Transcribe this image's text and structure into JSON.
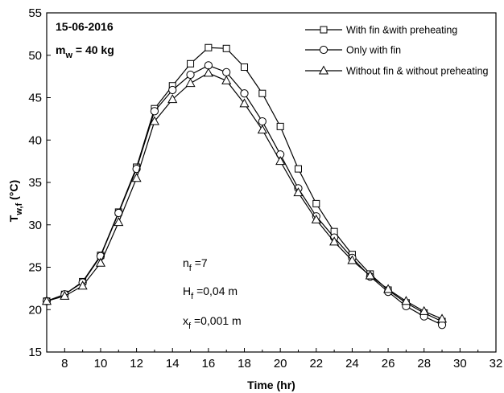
{
  "chart_data": {
    "type": "line",
    "title": "",
    "xlabel": "Time (hr)",
    "ylabel_main": "T",
    "ylabel_sub": "w,f",
    "ylabel_unit": " (°C)",
    "xlim": [
      7,
      32
    ],
    "ylim": [
      15,
      55
    ],
    "xticks": [
      "8",
      "10",
      "12",
      "14",
      "16",
      "18",
      "20",
      "22",
      "24",
      "26",
      "28",
      "30",
      "32"
    ],
    "yticks": [
      "15",
      "20",
      "25",
      "30",
      "35",
      "40",
      "45",
      "50",
      "55"
    ],
    "grid": false,
    "legend_position": "top-right",
    "annotations": {
      "date": "15-06-2016",
      "mass_main": "m",
      "mass_sub": "w",
      "mass_value": " = 40 kg",
      "nf_main": "n",
      "nf_sub": "f",
      "nf_value": " =7",
      "hf_main": "H",
      "hf_sub": "f",
      "hf_value": " =0,04 m",
      "xf_main": "x",
      "xf_sub": "f",
      "xf_value": " =0,001 m"
    },
    "series": [
      {
        "name": "With fin &with preheating",
        "marker": "square",
        "x": [
          7,
          8,
          9,
          10,
          11,
          12,
          13,
          14,
          15,
          16,
          17,
          18,
          19,
          20,
          21,
          22,
          23,
          24,
          25,
          26,
          27,
          28,
          29
        ],
        "y": [
          21.0,
          21.8,
          23.3,
          26.4,
          31.5,
          36.8,
          43.7,
          46.4,
          49.0,
          50.9,
          50.8,
          48.6,
          45.5,
          41.6,
          36.6,
          32.5,
          29.2,
          26.5,
          24.2,
          22.3,
          20.8,
          19.6,
          18.6
        ]
      },
      {
        "name": "Only with fin",
        "marker": "circle",
        "x": [
          7,
          8,
          9,
          10,
          11,
          12,
          13,
          14,
          15,
          16,
          17,
          18,
          19,
          20,
          21,
          22,
          23,
          24,
          25,
          26,
          27,
          28,
          29
        ],
        "y": [
          21.0,
          21.8,
          23.2,
          26.3,
          31.4,
          36.6,
          43.4,
          45.9,
          47.7,
          48.8,
          48.0,
          45.5,
          42.2,
          38.3,
          34.3,
          31.0,
          28.5,
          26.1,
          23.9,
          22.1,
          20.4,
          19.2,
          18.2
        ]
      },
      {
        "name": "Without fin & without preheating",
        "marker": "triangle",
        "x": [
          7,
          8,
          9,
          10,
          11,
          12,
          13,
          14,
          15,
          16,
          17,
          18,
          19,
          20,
          21,
          22,
          23,
          24,
          25,
          26,
          27,
          28,
          29
        ],
        "y": [
          21.0,
          21.6,
          22.8,
          25.5,
          30.3,
          35.5,
          42.2,
          44.8,
          46.7,
          47.9,
          47.0,
          44.3,
          41.2,
          37.5,
          33.8,
          30.6,
          28.0,
          25.8,
          24.0,
          22.4,
          21.0,
          19.8,
          18.9
        ]
      }
    ]
  }
}
